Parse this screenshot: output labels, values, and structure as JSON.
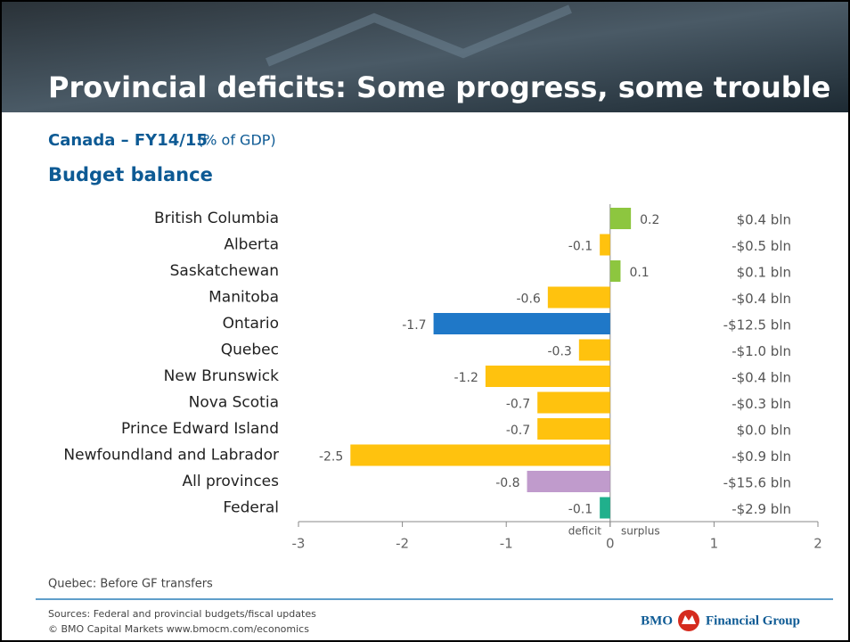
{
  "title": "Provincial deficits: Some progress, some trouble",
  "subtitle": "Canada – FY14/15",
  "unit": "(% of GDP)",
  "note": "Quebec: Before GF transfers",
  "footer": {
    "sources": "Sources: Federal and provincial budgets/fiscal updates",
    "copyright": "© BMO Capital Markets     www.bmocm.com/economics",
    "logo_name": "BMO",
    "logo_group": "Financial Group"
  },
  "chart_data": {
    "type": "hbar",
    "title": "Budget balance",
    "categories": [
      "British Columbia",
      "Alberta",
      "Saskatchewan",
      "Manitoba",
      "Ontario",
      "Quebec",
      "New Brunswick",
      "Nova Scotia",
      "Prince Edward Island",
      "Newfoundland and Labrador",
      "All provinces",
      "Federal"
    ],
    "values": [
      0.2,
      -0.1,
      0.1,
      -0.6,
      -1.7,
      -0.3,
      -1.2,
      -0.7,
      -0.7,
      -2.5,
      -0.8,
      -0.1
    ],
    "colors": [
      "#8dc63f",
      "#ffc20e",
      "#8dc63f",
      "#ffc20e",
      "#1f78c8",
      "#ffc20e",
      "#ffc20e",
      "#ffc20e",
      "#ffc20e",
      "#ffc20e",
      "#c09bcc",
      "#20b08c"
    ],
    "balances": [
      "$0.4 bln",
      "-$0.5 bln",
      "$0.1 bln",
      "-$0.4 bln",
      "-$12.5 bln",
      "-$1.0 bln",
      "-$0.4 bln",
      "-$0.3 bln",
      "$0.0 bln",
      "-$0.9 bln",
      "-$15.6 bln",
      "-$2.9 bln"
    ],
    "xlim": [
      -3,
      2
    ],
    "xticks": [
      -3,
      -2,
      -1,
      0,
      1,
      2
    ],
    "negative_label": "deficit",
    "positive_label": "surplus"
  }
}
